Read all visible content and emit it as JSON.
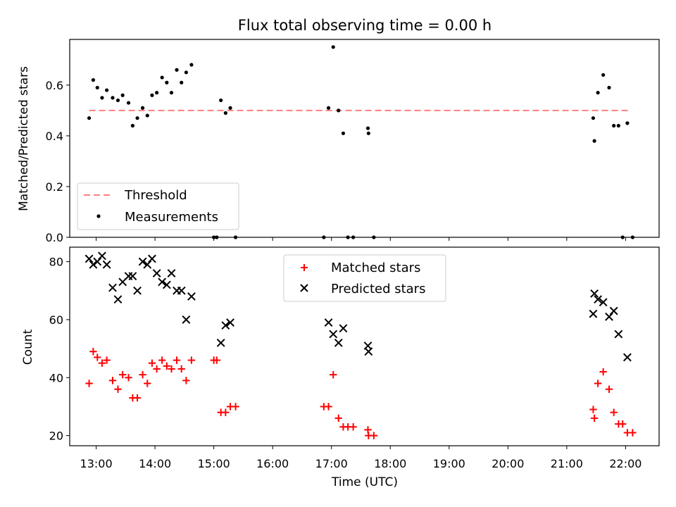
{
  "chart_data": [
    {
      "type": "scatter",
      "title": "Flux total observing time = 0.00 h",
      "xlabel": "",
      "ylabel": "Matched/Predicted stars",
      "ylim": [
        0,
        0.78
      ],
      "xlim": [
        12.55,
        22.57
      ],
      "yticks": [
        0.0,
        0.2,
        0.4,
        0.6
      ],
      "ytick_labels": [
        "0.0",
        "0.2",
        "0.4",
        "0.6"
      ],
      "legend_position": "lower-left",
      "threshold": {
        "name": "Threshold",
        "value": 0.5,
        "x_range": [
          12.88,
          22.07
        ],
        "color": "#ff7f7f",
        "style": "dashed"
      },
      "series": [
        {
          "name": "Measurements",
          "marker": "dot",
          "color": "#000000",
          "points": [
            [
              12.88,
              0.47
            ],
            [
              12.95,
              0.62
            ],
            [
              13.02,
              0.59
            ],
            [
              13.1,
              0.55
            ],
            [
              13.18,
              0.58
            ],
            [
              13.28,
              0.55
            ],
            [
              13.37,
              0.54
            ],
            [
              13.45,
              0.56
            ],
            [
              13.55,
              0.53
            ],
            [
              13.62,
              0.44
            ],
            [
              13.7,
              0.47
            ],
            [
              13.79,
              0.51
            ],
            [
              13.87,
              0.48
            ],
            [
              13.95,
              0.56
            ],
            [
              14.03,
              0.57
            ],
            [
              14.12,
              0.63
            ],
            [
              14.2,
              0.61
            ],
            [
              14.28,
              0.57
            ],
            [
              14.37,
              0.66
            ],
            [
              14.45,
              0.61
            ],
            [
              14.53,
              0.65
            ],
            [
              14.62,
              0.68
            ],
            [
              15.0,
              0.0
            ],
            [
              15.05,
              0.0
            ],
            [
              15.12,
              0.54
            ],
            [
              15.2,
              0.49
            ],
            [
              15.28,
              0.51
            ],
            [
              15.37,
              0.0
            ],
            [
              16.87,
              0.0
            ],
            [
              16.95,
              0.51
            ],
            [
              17.03,
              0.75
            ],
            [
              17.12,
              0.5
            ],
            [
              17.2,
              0.41
            ],
            [
              17.28,
              0.0
            ],
            [
              17.37,
              0.0
            ],
            [
              17.62,
              0.43
            ],
            [
              17.63,
              0.41
            ],
            [
              17.72,
              0.0
            ],
            [
              21.45,
              0.47
            ],
            [
              21.47,
              0.38
            ],
            [
              21.53,
              0.57
            ],
            [
              21.62,
              0.64
            ],
            [
              21.72,
              0.59
            ],
            [
              21.8,
              0.44
            ],
            [
              21.88,
              0.44
            ],
            [
              21.95,
              0.0
            ],
            [
              22.03,
              0.45
            ],
            [
              22.12,
              0.0
            ]
          ]
        }
      ]
    },
    {
      "type": "scatter",
      "title": "",
      "xlabel": "Time (UTC)",
      "ylabel": "Count",
      "ylim": [
        16.5,
        85
      ],
      "xlim": [
        12.55,
        22.57
      ],
      "yticks": [
        20,
        40,
        60,
        80
      ],
      "ytick_labels": [
        "20",
        "40",
        "60",
        "80"
      ],
      "xticks": [
        13,
        14,
        15,
        16,
        17,
        18,
        19,
        20,
        21,
        22
      ],
      "xtick_labels": [
        "13:00",
        "14:00",
        "15:00",
        "16:00",
        "17:00",
        "18:00",
        "19:00",
        "20:00",
        "21:00",
        "22:00"
      ],
      "legend_position": "upper-center",
      "series": [
        {
          "name": "Matched stars",
          "marker": "plus",
          "color": "#ff0000",
          "points": [
            [
              12.88,
              38
            ],
            [
              12.95,
              49
            ],
            [
              13.02,
              47
            ],
            [
              13.1,
              45
            ],
            [
              13.18,
              46
            ],
            [
              13.28,
              39
            ],
            [
              13.37,
              36
            ],
            [
              13.45,
              41
            ],
            [
              13.55,
              40
            ],
            [
              13.62,
              33
            ],
            [
              13.7,
              33
            ],
            [
              13.79,
              41
            ],
            [
              13.87,
              38
            ],
            [
              13.95,
              45
            ],
            [
              14.03,
              43
            ],
            [
              14.12,
              46
            ],
            [
              14.2,
              44
            ],
            [
              14.28,
              43
            ],
            [
              14.37,
              46
            ],
            [
              14.45,
              43
            ],
            [
              14.53,
              39
            ],
            [
              14.62,
              46
            ],
            [
              15.0,
              46
            ],
            [
              15.05,
              46
            ],
            [
              15.12,
              28
            ],
            [
              15.2,
              28
            ],
            [
              15.28,
              30
            ],
            [
              15.37,
              30
            ],
            [
              16.87,
              30
            ],
            [
              16.95,
              30
            ],
            [
              17.03,
              41
            ],
            [
              17.12,
              26
            ],
            [
              17.2,
              23
            ],
            [
              17.28,
              23
            ],
            [
              17.37,
              23
            ],
            [
              17.62,
              22
            ],
            [
              17.63,
              20
            ],
            [
              17.72,
              20
            ],
            [
              21.45,
              29
            ],
            [
              21.47,
              26
            ],
            [
              21.53,
              38
            ],
            [
              21.62,
              42
            ],
            [
              21.72,
              36
            ],
            [
              21.8,
              28
            ],
            [
              21.88,
              24
            ],
            [
              21.95,
              24
            ],
            [
              22.03,
              21
            ],
            [
              22.12,
              21
            ]
          ]
        },
        {
          "name": "Predicted stars",
          "marker": "x",
          "color": "#000000",
          "points": [
            [
              12.88,
              81
            ],
            [
              12.95,
              79
            ],
            [
              13.02,
              80
            ],
            [
              13.1,
              82
            ],
            [
              13.18,
              79
            ],
            [
              13.28,
              71
            ],
            [
              13.37,
              67
            ],
            [
              13.45,
              73
            ],
            [
              13.55,
              75
            ],
            [
              13.62,
              75
            ],
            [
              13.7,
              70
            ],
            [
              13.79,
              80
            ],
            [
              13.87,
              79
            ],
            [
              13.95,
              81
            ],
            [
              14.03,
              76
            ],
            [
              14.12,
              73
            ],
            [
              14.2,
              72
            ],
            [
              14.28,
              76
            ],
            [
              14.37,
              70
            ],
            [
              14.45,
              70
            ],
            [
              14.53,
              60
            ],
            [
              14.62,
              68
            ],
            [
              15.12,
              52
            ],
            [
              15.2,
              58
            ],
            [
              15.28,
              59
            ],
            [
              16.95,
              59
            ],
            [
              17.03,
              55
            ],
            [
              17.12,
              52
            ],
            [
              17.2,
              57
            ],
            [
              17.62,
              51
            ],
            [
              17.63,
              49
            ],
            [
              21.45,
              62
            ],
            [
              21.47,
              69
            ],
            [
              21.53,
              67
            ],
            [
              21.62,
              66
            ],
            [
              21.72,
              61
            ],
            [
              21.8,
              63
            ],
            [
              21.88,
              55
            ],
            [
              22.03,
              47
            ]
          ]
        }
      ]
    }
  ]
}
